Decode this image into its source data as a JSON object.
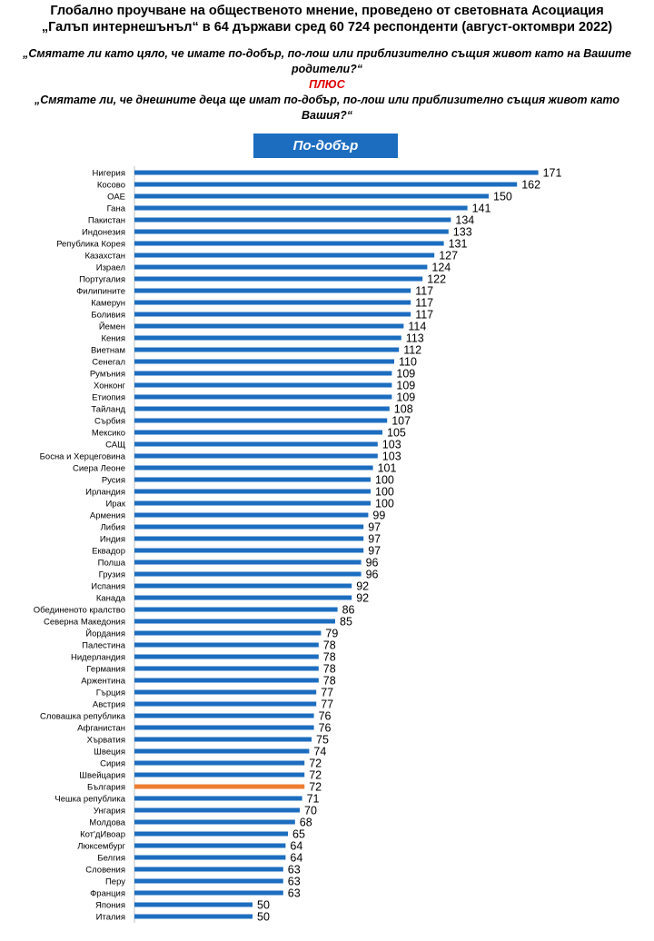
{
  "header": {
    "title_line1": "Глобално проучване на общественото мнение, проведено от световната Асоциация",
    "title_line2": "„Галъп интернешънъл“ в 64 държави сред 60 724 респонденти (август-октомври 2022)",
    "question1": "„Смятате ли като цяло, че имате по-добър, по-лош или приблизително същия живот като на Вашите родители?“",
    "plus": "ПЛЮС",
    "question2": "„Смятате ли, че днешните деца ще имат по-добър, по-лош или приблизително същия живот като Вашия?“"
  },
  "colors": {
    "bar": "#1c6dbf",
    "highlight": "#ed7d31",
    "legend": "#1c6dbf"
  },
  "chart_data": {
    "type": "bar",
    "orientation": "horizontal",
    "legend": "По-добър",
    "highlight": "България",
    "categories": [
      "Нигерия",
      "Косово",
      "ОАЕ",
      "Гана",
      "Пакистан",
      "Индонезия",
      "Република Корея",
      "Казахстан",
      "Израел",
      "Португалия",
      "Филипините",
      "Камерун",
      "Боливия",
      "Йемен",
      "Кения",
      "Виетнам",
      "Сенегал",
      "Румъния",
      "Хонконг",
      "Етиопия",
      "Тайланд",
      "Сърбия",
      "Мексико",
      "САЩ",
      "Босна и Херцеговина",
      "Сиера Леоне",
      "Русия",
      "Ирландия",
      "Ирак",
      "Армения",
      "Либия",
      "Индия",
      "Еквадор",
      "Полша",
      "Грузия",
      "Испания",
      "Канада",
      "Обединеното кралство",
      "Северна Македония",
      "Йордания",
      "Палестина",
      "Нидерландия",
      "Германия",
      "Аржентина",
      "Гърция",
      "Австрия",
      "Словашка република",
      "Афганистан",
      "Хърватия",
      "Швеция",
      "Сирия",
      "Швейцария",
      "България",
      "Чешка република",
      "Унгария",
      "Молдова",
      "Кот'дИвоар",
      "Люксембург",
      "Белгия",
      "Словения",
      "Перу",
      "Франция",
      "Япония",
      "Италия"
    ],
    "values": [
      171,
      162,
      150,
      141,
      134,
      133,
      131,
      127,
      124,
      122,
      117,
      117,
      117,
      114,
      113,
      112,
      110,
      109,
      109,
      109,
      108,
      107,
      105,
      103,
      103,
      101,
      100,
      100,
      100,
      99,
      97,
      97,
      97,
      96,
      96,
      92,
      92,
      86,
      85,
      79,
      78,
      78,
      78,
      78,
      77,
      77,
      76,
      76,
      75,
      74,
      72,
      72,
      72,
      71,
      70,
      68,
      65,
      64,
      64,
      63,
      63,
      63,
      50,
      50
    ]
  }
}
